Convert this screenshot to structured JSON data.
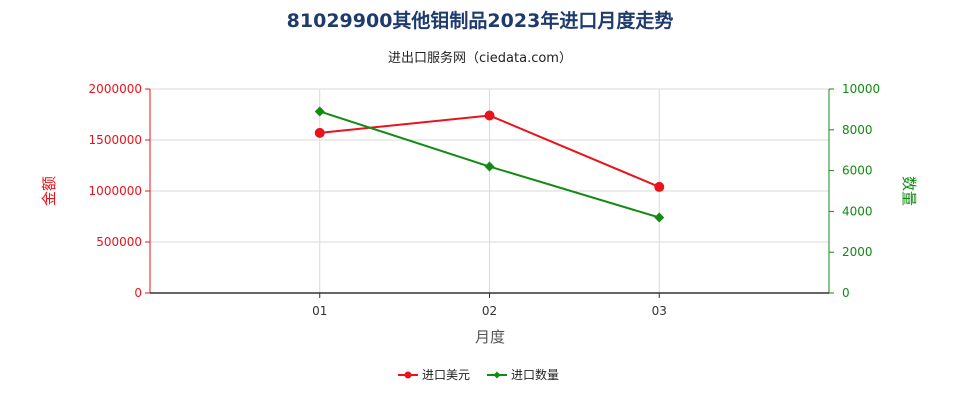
{
  "chart_data": {
    "type": "line",
    "title": "81029900其他钼制品2023年进口月度走势",
    "subtitle": "进出口服务网（ciedata.com）",
    "xlabel": "月度",
    "ylabel_left": "金额",
    "ylabel_right": "数量",
    "categories": [
      "01",
      "02",
      "03"
    ],
    "ylim_left": [
      0,
      2000000
    ],
    "ylim_right": [
      0,
      10000
    ],
    "yticks_left": [
      "0",
      "500000",
      "1000000",
      "1500000",
      "2000000"
    ],
    "yticks_right": [
      "0",
      "2000",
      "4000",
      "6000",
      "8000",
      "10000"
    ],
    "grid": true,
    "legend_position": "bottom",
    "series": [
      {
        "name": "进口美元",
        "axis": "left",
        "color": "#e8141c",
        "marker": "circle",
        "values": [
          1570000,
          1740000,
          1040000
        ]
      },
      {
        "name": "进口数量",
        "axis": "right",
        "color": "#138a13",
        "marker": "diamond",
        "values": [
          8900,
          6200,
          3700
        ]
      }
    ]
  }
}
